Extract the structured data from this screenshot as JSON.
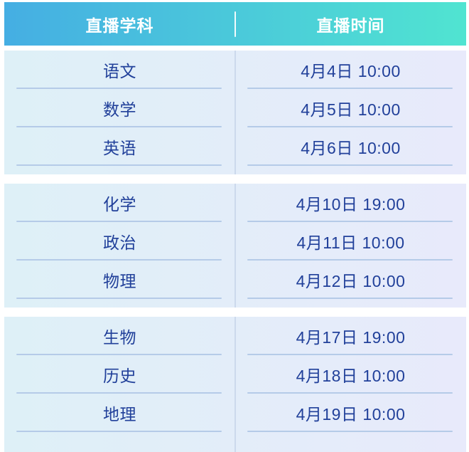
{
  "colors": {
    "header_gradient_start": "#45aee3",
    "header_gradient_end": "#50e4d1",
    "header_text": "#ffffff",
    "section_gradient_start": "#def0f7",
    "section_gradient_end": "#e8eafb",
    "cell_text": "#21409a",
    "row_divider": "#b5cbe8",
    "column_divider": "#ccd9ec"
  },
  "table": {
    "headers": {
      "subject": "直播学科",
      "time": "直播时间"
    },
    "sections": [
      {
        "rows": [
          {
            "subject": "语文",
            "time": "4月4日 10:00"
          },
          {
            "subject": "数学",
            "time": "4月5日 10:00"
          },
          {
            "subject": "英语",
            "time": "4月6日 10:00"
          }
        ]
      },
      {
        "rows": [
          {
            "subject": "化学",
            "time": "4月10日 19:00"
          },
          {
            "subject": "政治",
            "time": "4月11日 10:00"
          },
          {
            "subject": "物理",
            "time": "4月12日 10:00"
          }
        ]
      },
      {
        "rows": [
          {
            "subject": "生物",
            "time": "4月17日 19:00"
          },
          {
            "subject": "历史",
            "time": "4月18日 10:00"
          },
          {
            "subject": "地理",
            "time": "4月19日 10:00"
          }
        ]
      }
    ]
  },
  "chart_data": {
    "type": "table",
    "title": "",
    "columns": [
      "直播学科",
      "直播时间"
    ],
    "rows": [
      [
        "语文",
        "4月4日 10:00"
      ],
      [
        "数学",
        "4月5日 10:00"
      ],
      [
        "英语",
        "4月6日 10:00"
      ],
      [
        "化学",
        "4月10日 19:00"
      ],
      [
        "政治",
        "4月11日 10:00"
      ],
      [
        "物理",
        "4月12日 10:00"
      ],
      [
        "生物",
        "4月17日 19:00"
      ],
      [
        "历史",
        "4月18日 10:00"
      ],
      [
        "地理",
        "4月19日 10:00"
      ]
    ],
    "row_groups": [
      [
        0,
        1,
        2
      ],
      [
        3,
        4,
        5
      ],
      [
        6,
        7,
        8
      ]
    ],
    "layout_hints": {
      "grouped_blocks": 3,
      "header_style": "blue-to-teal gradient, white bold text",
      "body_style": "light cyan-to-lavender gradient blocks, navy text"
    }
  }
}
